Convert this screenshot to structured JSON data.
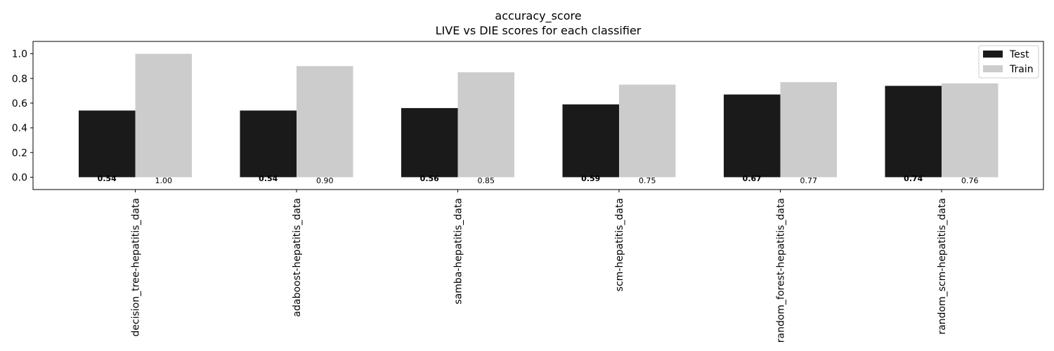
{
  "chart_data": {
    "type": "bar",
    "title": "accuracy_score",
    "subtitle": "LIVE vs DIE scores for each classifier",
    "xlabel": "",
    "ylabel": "",
    "ylim": [
      -0.1,
      1.1
    ],
    "yticks": [
      0.0,
      0.2,
      0.4,
      0.6,
      0.8,
      1.0
    ],
    "ytick_labels": [
      "0.0",
      "0.2",
      "0.4",
      "0.6",
      "0.8",
      "1.0"
    ],
    "grid": false,
    "legend_position": "top-right",
    "categories": [
      "decision_tree-hepatitis_data",
      "adaboost-hepatitis_data",
      "samba-hepatitis_data",
      "scm-hepatitis_data",
      "random_forest-hepatitis_data",
      "random_scm-hepatitis_data"
    ],
    "series": [
      {
        "name": "Test",
        "color": "#1a1a1a",
        "values": [
          0.54,
          0.54,
          0.56,
          0.59,
          0.67,
          0.74
        ],
        "labels": [
          "0.54",
          "0.54",
          "0.56",
          "0.59",
          "0.67",
          "0.74"
        ]
      },
      {
        "name": "Train",
        "color": "#cccccc",
        "values": [
          1.0,
          0.9,
          0.85,
          0.75,
          0.77,
          0.76
        ],
        "labels": [
          "1.00",
          "0.90",
          "0.85",
          "0.75",
          "0.77",
          "0.76"
        ]
      }
    ]
  }
}
